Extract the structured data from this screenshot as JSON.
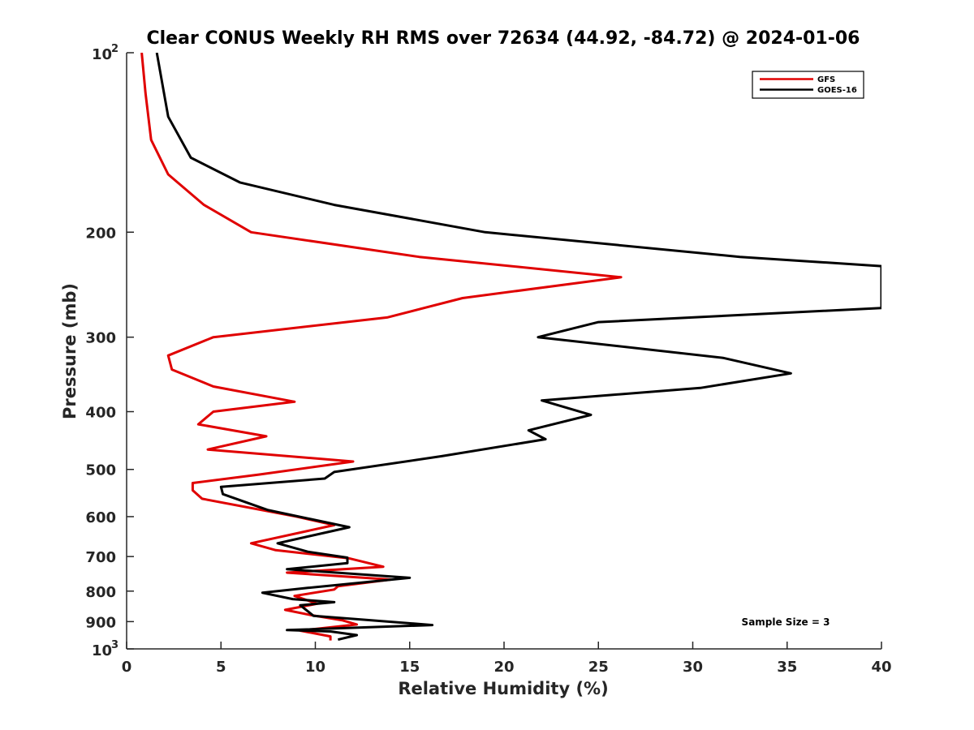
{
  "chart_data": {
    "type": "line",
    "title": "Clear CONUS Weekly RH RMS over 72634 (44.92, -84.72) @ 2024-01-06",
    "xlabel": "Relative Humidity (%)",
    "ylabel": "Pressure (mb)",
    "xlim": [
      0,
      40
    ],
    "ylim": [
      100,
      1000
    ],
    "yscale": "log",
    "y_reversed": true,
    "grid": false,
    "legend_position": "top-right",
    "x_ticks": [
      {
        "value": 0,
        "label": "0"
      },
      {
        "value": 5,
        "label": "5"
      },
      {
        "value": 10,
        "label": "10"
      },
      {
        "value": 15,
        "label": "15"
      },
      {
        "value": 20,
        "label": "20"
      },
      {
        "value": 25,
        "label": "25"
      },
      {
        "value": 30,
        "label": "30"
      },
      {
        "value": 35,
        "label": "35"
      },
      {
        "value": 40,
        "label": "40"
      }
    ],
    "y_ticks": [
      {
        "value": 100,
        "base": "10",
        "exp": "2"
      },
      {
        "value": 200,
        "label": "200"
      },
      {
        "value": 300,
        "label": "300"
      },
      {
        "value": 400,
        "label": "400"
      },
      {
        "value": 500,
        "label": "500"
      },
      {
        "value": 600,
        "label": "600"
      },
      {
        "value": 700,
        "label": "700"
      },
      {
        "value": 800,
        "label": "800"
      },
      {
        "value": 900,
        "label": "900"
      },
      {
        "value": 1000,
        "base": "10",
        "exp": "3"
      }
    ],
    "series": [
      {
        "name": "GFS",
        "color": "#e00000",
        "points": [
          [
            0.8,
            100
          ],
          [
            1.0,
            117
          ],
          [
            1.3,
            140
          ],
          [
            2.2,
            160
          ],
          [
            4.1,
            180
          ],
          [
            6.6,
            200
          ],
          [
            15.5,
            220
          ],
          [
            26.2,
            238
          ],
          [
            17.8,
            258
          ],
          [
            13.8,
            278
          ],
          [
            4.6,
            300
          ],
          [
            2.2,
            322
          ],
          [
            2.4,
            340
          ],
          [
            4.6,
            363
          ],
          [
            8.9,
            385
          ],
          [
            4.6,
            400
          ],
          [
            3.8,
            420
          ],
          [
            7.4,
            440
          ],
          [
            4.3,
            463
          ],
          [
            12.0,
            485
          ],
          [
            7.0,
            510
          ],
          [
            3.5,
            527
          ],
          [
            3.5,
            542
          ],
          [
            4.0,
            560
          ],
          [
            9.0,
            600
          ],
          [
            11.0,
            620
          ],
          [
            6.6,
            665
          ],
          [
            7.9,
            683
          ],
          [
            11.8,
            705
          ],
          [
            13.6,
            728
          ],
          [
            8.5,
            745
          ],
          [
            14.0,
            765
          ],
          [
            11.2,
            785
          ],
          [
            11.0,
            795
          ],
          [
            8.9,
            815
          ],
          [
            10.1,
            840
          ],
          [
            8.4,
            860
          ],
          [
            9.8,
            878
          ],
          [
            11.4,
            895
          ],
          [
            12.2,
            910
          ],
          [
            9.2,
            932
          ],
          [
            10.8,
            953
          ],
          [
            10.8,
            968
          ]
        ]
      },
      {
        "name": "GOES-16",
        "color": "#000000",
        "points": [
          [
            1.6,
            100
          ],
          [
            2.2,
            128
          ],
          [
            3.4,
            150
          ],
          [
            6.0,
            165
          ],
          [
            11.0,
            180
          ],
          [
            19.0,
            200
          ],
          [
            32.5,
            220
          ],
          [
            40.0,
            228
          ],
          [
            40.0,
            268
          ],
          [
            25.0,
            283
          ],
          [
            21.8,
            300
          ],
          [
            31.6,
            325
          ],
          [
            35.2,
            345
          ],
          [
            30.4,
            365
          ],
          [
            22.0,
            383
          ],
          [
            24.6,
            405
          ],
          [
            21.3,
            430
          ],
          [
            22.2,
            445
          ],
          [
            16.7,
            475
          ],
          [
            11.0,
            505
          ],
          [
            10.5,
            518
          ],
          [
            5.0,
            535
          ],
          [
            5.1,
            550
          ],
          [
            7.5,
            585
          ],
          [
            11.8,
            625
          ],
          [
            8.0,
            665
          ],
          [
            9.6,
            687
          ],
          [
            11.7,
            703
          ],
          [
            11.7,
            718
          ],
          [
            8.5,
            735
          ],
          [
            15.0,
            760
          ],
          [
            9.6,
            790
          ],
          [
            7.2,
            805
          ],
          [
            8.8,
            825
          ],
          [
            11.0,
            835
          ],
          [
            9.2,
            845
          ],
          [
            9.9,
            880
          ],
          [
            16.2,
            912
          ],
          [
            8.5,
            930
          ],
          [
            10.8,
            935
          ],
          [
            12.2,
            948
          ],
          [
            11.2,
            965
          ]
        ]
      }
    ],
    "legend": [
      {
        "name": "GFS",
        "color": "#e00000"
      },
      {
        "name": "GOES-16",
        "color": "#000000"
      }
    ],
    "annotations": [
      {
        "text": "Sample Size = 3",
        "x": 38,
        "y": 900
      }
    ]
  }
}
